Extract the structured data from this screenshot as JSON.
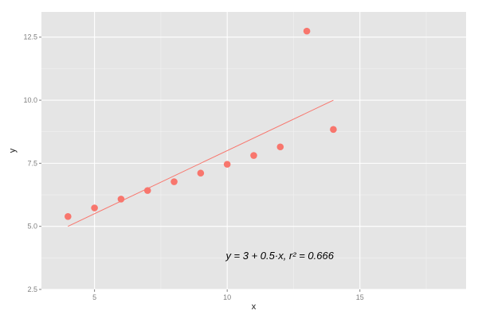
{
  "chart_data": {
    "type": "scatter",
    "xlabel": "x",
    "ylabel": "y",
    "xlim": [
      3.0,
      19.0
    ],
    "ylim": [
      2.5,
      13.5
    ],
    "x_ticks": [
      5,
      10,
      15
    ],
    "x_tick_labels": [
      "5",
      "10",
      "15"
    ],
    "y_ticks": [
      2.5,
      5.0,
      7.5,
      10.0,
      12.5
    ],
    "y_tick_labels": [
      "2.5",
      "5.0",
      "7.5",
      "10.0",
      "12.5"
    ],
    "grid": true,
    "background": "#e5e5e5",
    "grid_color": "#ffffff",
    "point_color": "#f8766d",
    "line_color": "#f8766d",
    "points": [
      {
        "x": 4,
        "y": 5.39
      },
      {
        "x": 5,
        "y": 5.73
      },
      {
        "x": 6,
        "y": 6.08
      },
      {
        "x": 7,
        "y": 6.42
      },
      {
        "x": 8,
        "y": 6.77
      },
      {
        "x": 9,
        "y": 7.11
      },
      {
        "x": 10,
        "y": 7.46
      },
      {
        "x": 11,
        "y": 7.81
      },
      {
        "x": 12,
        "y": 8.15
      },
      {
        "x": 13,
        "y": 12.74
      },
      {
        "x": 14,
        "y": 8.84
      }
    ],
    "fit_line": {
      "x": [
        4,
        14
      ],
      "y": [
        5.0,
        10.0
      ]
    },
    "annotation": {
      "x": 10.0,
      "y": 3.85,
      "text": "y = 3 + 0.5·x, r² = 0.666"
    }
  }
}
